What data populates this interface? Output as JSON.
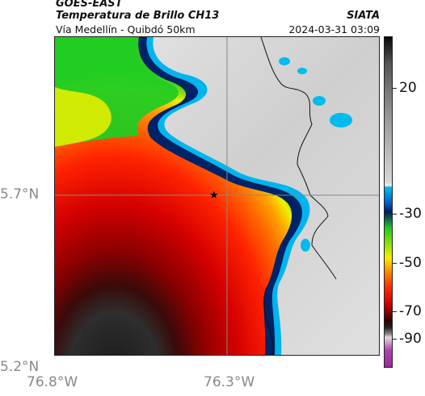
{
  "header": {
    "satellite": "GOES-EAST",
    "product": "Temperatura de Brillo CH13",
    "org": "SIATA",
    "route": "Vía Medellín - Quibdó 50km",
    "timestamp": "2024-03-31 03:09"
  },
  "map": {
    "lat_ticks": [
      "5.7°N",
      "5.2°N"
    ],
    "lon_ticks": [
      "76.8°W",
      "76.3°W"
    ],
    "gridline_lat": 5.7,
    "gridline_lon": -76.3,
    "marker": {
      "symbol": "star",
      "lat": 5.7,
      "lon": -76.33
    }
  },
  "colorbar": {
    "labels": [
      "20",
      "-30",
      "-50",
      "-70",
      "-90"
    ],
    "units_hint": "brightness temperature"
  },
  "colors": {
    "cold_cloud_black": "#0c0c0c",
    "deep_red": "#cc0000",
    "red": "#ff2a00",
    "orange": "#ff8c00",
    "yellow": "#f5f000",
    "green": "#22cc22",
    "cyan": "#00bbee",
    "navy": "#001a66",
    "warm_gray": "#d9d9d9",
    "magenta": "#b040b0"
  }
}
